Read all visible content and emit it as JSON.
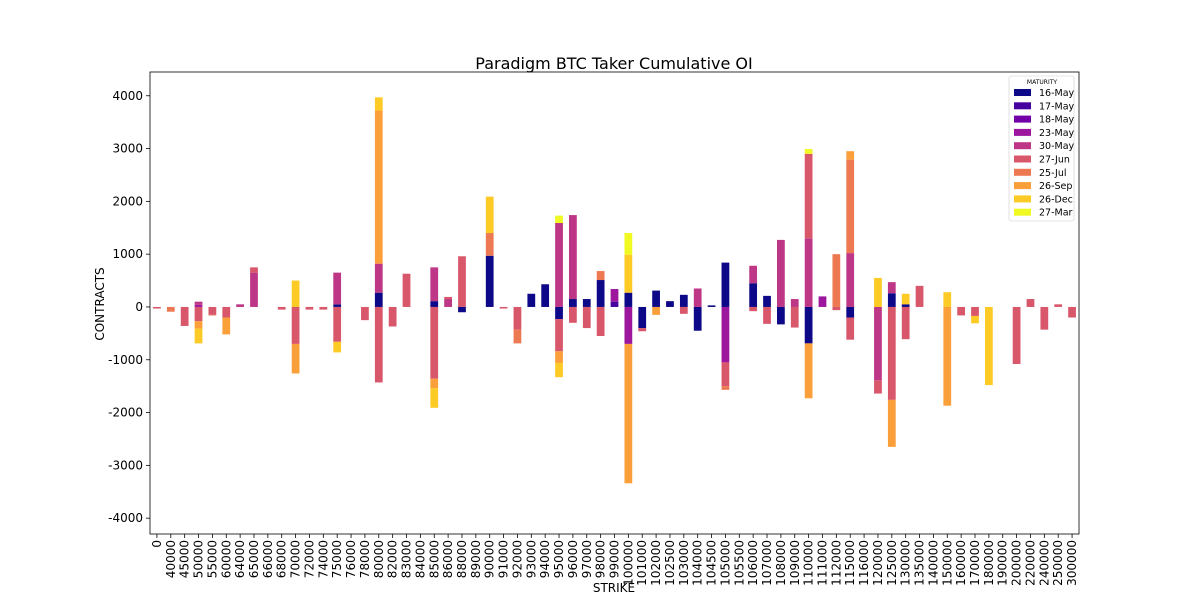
{
  "chart_data": {
    "type": "bar",
    "stacked": true,
    "title": "Paradigm BTC Taker Cumulative OI",
    "xlabel": "STRIKE",
    "ylabel": "CONTRACTS",
    "ylim": [
      -4300,
      4450
    ],
    "yticks": [
      -4000,
      -3000,
      -2000,
      -1000,
      0,
      1000,
      2000,
      3000,
      4000
    ],
    "grid": false,
    "legend": {
      "title": "MATURITY",
      "position": "top-right"
    },
    "categories": [
      "0",
      "40000",
      "45000",
      "50000",
      "55000",
      "60000",
      "64000",
      "65000",
      "66000",
      "68000",
      "70000",
      "72000",
      "74000",
      "75000",
      "76000",
      "78000",
      "80000",
      "82000",
      "83000",
      "84000",
      "85000",
      "86000",
      "88000",
      "89000",
      "90000",
      "91000",
      "92000",
      "93000",
      "94000",
      "95000",
      "96000",
      "97000",
      "98000",
      "99000",
      "100000",
      "101000",
      "102000",
      "102500",
      "103000",
      "104000",
      "104500",
      "105000",
      "105500",
      "106000",
      "107000",
      "108000",
      "109000",
      "110000",
      "111000",
      "112000",
      "115000",
      "116000",
      "120000",
      "125000",
      "130000",
      "135000",
      "140000",
      "150000",
      "160000",
      "170000",
      "180000",
      "190000",
      "200000",
      "220000",
      "240000",
      "250000",
      "300000"
    ],
    "series": [
      {
        "name": "16-May",
        "color": "#0d0887",
        "values": [
          0,
          0,
          0,
          0,
          0,
          0,
          0,
          0,
          0,
          0,
          0,
          0,
          0,
          50,
          0,
          0,
          270,
          0,
          0,
          0,
          110,
          0,
          -100,
          0,
          970,
          0,
          0,
          250,
          430,
          -230,
          150,
          150,
          510,
          0,
          270,
          -400,
          310,
          110,
          230,
          -450,
          30,
          840,
          0,
          450,
          210,
          -330,
          0,
          -690,
          0,
          0,
          -200,
          0,
          0,
          260,
          50,
          0,
          0,
          0,
          0,
          0,
          0,
          0,
          0,
          0,
          0,
          0,
          0
        ]
      },
      {
        "name": "17-May",
        "color": "#46039f",
        "values": [
          0,
          0,
          0,
          0,
          0,
          0,
          0,
          0,
          0,
          0,
          0,
          0,
          0,
          0,
          0,
          0,
          0,
          0,
          0,
          0,
          0,
          0,
          0,
          0,
          0,
          0,
          0,
          0,
          0,
          0,
          0,
          0,
          0,
          100,
          0,
          0,
          0,
          0,
          0,
          0,
          0,
          0,
          0,
          0,
          0,
          0,
          0,
          0,
          0,
          0,
          0,
          0,
          0,
          0,
          0,
          0,
          0,
          0,
          0,
          0,
          0,
          0,
          0,
          0,
          0,
          0,
          0
        ]
      },
      {
        "name": "18-May",
        "color": "#7201a8",
        "values": [
          0,
          0,
          0,
          0,
          0,
          0,
          0,
          0,
          0,
          0,
          0,
          0,
          0,
          0,
          0,
          0,
          0,
          0,
          0,
          0,
          0,
          0,
          0,
          0,
          0,
          0,
          0,
          0,
          0,
          0,
          0,
          0,
          0,
          0,
          0,
          0,
          0,
          0,
          0,
          0,
          0,
          0,
          0,
          0,
          0,
          0,
          0,
          0,
          0,
          0,
          0,
          0,
          0,
          0,
          0,
          0,
          0,
          0,
          0,
          0,
          0,
          0,
          0,
          0,
          0,
          0,
          0
        ]
      },
      {
        "name": "23-May",
        "color": "#9c179e",
        "values": [
          0,
          0,
          0,
          40,
          0,
          0,
          0,
          0,
          0,
          0,
          0,
          0,
          0,
          0,
          0,
          0,
          0,
          0,
          0,
          0,
          0,
          0,
          0,
          0,
          0,
          0,
          0,
          0,
          0,
          0,
          0,
          0,
          0,
          240,
          -700,
          0,
          0,
          0,
          0,
          0,
          0,
          -1050,
          0,
          0,
          0,
          0,
          0,
          0,
          200,
          0,
          0,
          0,
          0,
          0,
          0,
          0,
          0,
          0,
          0,
          0,
          0,
          0,
          0,
          0,
          0,
          0,
          0
        ]
      },
      {
        "name": "30-May",
        "color": "#bd3786",
        "values": [
          0,
          0,
          0,
          60,
          0,
          0,
          50,
          650,
          0,
          0,
          0,
          0,
          0,
          600,
          0,
          0,
          550,
          0,
          0,
          0,
          640,
          150,
          0,
          0,
          0,
          0,
          0,
          0,
          0,
          1590,
          1590,
          0,
          0,
          0,
          0,
          0,
          0,
          0,
          0,
          350,
          0,
          0,
          0,
          330,
          0,
          1270,
          150,
          1300,
          0,
          0,
          1020,
          0,
          -1390,
          210,
          0,
          0,
          0,
          0,
          0,
          0,
          0,
          0,
          0,
          0,
          0,
          0,
          0
        ]
      },
      {
        "name": "27-Jun",
        "color": "#d8576b",
        "values": [
          -30,
          0,
          -360,
          -270,
          -150,
          -200,
          0,
          100,
          0,
          -50,
          -700,
          -50,
          -50,
          -660,
          0,
          -250,
          -1430,
          -370,
          630,
          0,
          -1360,
          40,
          960,
          0,
          0,
          -30,
          -430,
          0,
          0,
          -610,
          -300,
          -400,
          -550,
          0,
          0,
          -60,
          0,
          0,
          -130,
          0,
          0,
          -450,
          0,
          -80,
          -320,
          0,
          -390,
          1600,
          0,
          -60,
          -420,
          0,
          -250,
          -1760,
          -610,
          400,
          0,
          0,
          -160,
          -170,
          0,
          0,
          -1080,
          150,
          -430,
          50,
          -200
        ]
      },
      {
        "name": "25-Jul",
        "color": "#ed7953",
        "values": [
          0,
          -90,
          0,
          0,
          -10,
          0,
          0,
          0,
          0,
          0,
          0,
          0,
          0,
          0,
          0,
          0,
          0,
          0,
          0,
          0,
          0,
          0,
          0,
          0,
          430,
          0,
          -260,
          0,
          0,
          0,
          0,
          0,
          170,
          0,
          0,
          0,
          0,
          0,
          0,
          0,
          0,
          -70,
          0,
          0,
          0,
          0,
          0,
          0,
          0,
          1000,
          1770,
          0,
          0,
          0,
          0,
          0,
          0,
          0,
          0,
          0,
          0,
          0,
          0,
          0,
          0,
          0,
          0
        ]
      },
      {
        "name": "26-Sep",
        "color": "#fb9f3a",
        "values": [
          0,
          0,
          0,
          -140,
          0,
          -320,
          0,
          0,
          0,
          0,
          -560,
          0,
          0,
          0,
          0,
          0,
          2900,
          0,
          0,
          0,
          -180,
          0,
          0,
          0,
          0,
          0,
          0,
          0,
          0,
          -220,
          0,
          0,
          0,
          0,
          -2640,
          0,
          -150,
          0,
          0,
          0,
          0,
          0,
          0,
          0,
          0,
          0,
          0,
          -1040,
          0,
          0,
          160,
          0,
          0,
          -890,
          0,
          0,
          0,
          -1870,
          0,
          0,
          0,
          0,
          0,
          0,
          0,
          0,
          0
        ]
      },
      {
        "name": "26-Dec",
        "color": "#fdca26",
        "values": [
          0,
          0,
          0,
          -280,
          0,
          0,
          0,
          0,
          0,
          0,
          500,
          0,
          0,
          -200,
          0,
          0,
          250,
          0,
          0,
          0,
          -370,
          0,
          0,
          0,
          690,
          0,
          0,
          0,
          0,
          -270,
          0,
          0,
          0,
          0,
          720,
          0,
          0,
          0,
          0,
          0,
          0,
          0,
          0,
          0,
          0,
          0,
          0,
          0,
          0,
          0,
          0,
          0,
          550,
          0,
          200,
          0,
          0,
          280,
          0,
          -140,
          -1480,
          0,
          0,
          0,
          0,
          0,
          0
        ]
      },
      {
        "name": "27-Mar",
        "color": "#f0f921",
        "values": [
          0,
          0,
          0,
          0,
          0,
          0,
          0,
          0,
          0,
          0,
          0,
          0,
          0,
          0,
          0,
          0,
          0,
          0,
          0,
          0,
          0,
          0,
          0,
          0,
          0,
          0,
          0,
          0,
          0,
          140,
          0,
          0,
          0,
          0,
          410,
          0,
          0,
          0,
          0,
          0,
          0,
          0,
          0,
          0,
          0,
          0,
          0,
          90,
          0,
          0,
          0,
          0,
          0,
          0,
          0,
          0,
          0,
          0,
          0,
          0,
          0,
          0,
          0,
          0,
          0,
          0,
          0
        ]
      }
    ]
  }
}
